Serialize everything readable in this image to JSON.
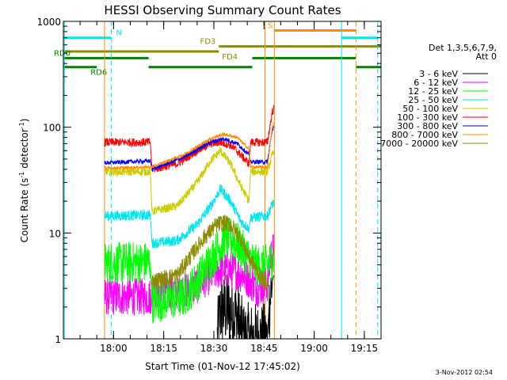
{
  "chart_data": {
    "type": "line",
    "title": "HESSI Observing Summary Count Rates",
    "xlabel": "Start Time (01-Nov-12 17:45:02)",
    "ylabel_main": "Count Rate (s",
    "ylabel_sup1": "-1",
    "ylabel_mid": " detector",
    "ylabel_sup2": "-1",
    "ylabel_end": ")",
    "yscale": "log",
    "ylim": [
      1,
      1000
    ],
    "y_ticks": [
      {
        "v": 1,
        "label": "1"
      },
      {
        "v": 10,
        "label": "10"
      },
      {
        "v": 100,
        "label": "100"
      },
      {
        "v": 1000,
        "label": "1000"
      }
    ],
    "xlim": [
      0,
      95
    ],
    "x_ticks": [
      {
        "t": 15,
        "label": "18:00"
      },
      {
        "t": 30,
        "label": "18:15"
      },
      {
        "t": 45,
        "label": "18:30"
      },
      {
        "t": 60,
        "label": "18:45"
      },
      {
        "t": 75,
        "label": "19:00"
      },
      {
        "t": 90,
        "label": "19:15"
      }
    ],
    "legend_header": [
      "Det 1,3,5,6,7,9,",
      "Att 0"
    ],
    "legend_position": "right",
    "gaps": [
      [
        0,
        12.3
      ],
      [
        63.1,
        95
      ]
    ],
    "series": [
      {
        "name": "3 - 6 keV",
        "color": "#000000",
        "noise": 0.35,
        "points": [
          [
            46,
            1.0
          ],
          [
            47,
            1.8
          ],
          [
            49,
            1.9
          ],
          [
            52,
            1.6
          ],
          [
            54,
            1.0
          ],
          [
            61,
            1.0
          ],
          [
            61.5,
            2.0
          ],
          [
            62.5,
            3.5
          ],
          [
            62.9,
            4.0
          ]
        ]
      },
      {
        "name": "6 - 12 keV",
        "color": "#ff00ff",
        "noise": 0.18,
        "points": [
          [
            12.3,
            2.5
          ],
          [
            26,
            2.5
          ],
          [
            26.5,
            2.8
          ],
          [
            38,
            2.9
          ],
          [
            44,
            4.0
          ],
          [
            47,
            4.5
          ],
          [
            50,
            4.5
          ],
          [
            54,
            4.0
          ],
          [
            58,
            3.0
          ],
          [
            61,
            3.3
          ],
          [
            62,
            6.0
          ],
          [
            62.9,
            7.0
          ]
        ]
      },
      {
        "name": "12 - 25 keV",
        "color": "#00ff00",
        "noise": 0.2,
        "points": [
          [
            12.3,
            5.2
          ],
          [
            26,
            5.3
          ],
          [
            26.5,
            2.2
          ],
          [
            36,
            2.5
          ],
          [
            40,
            3.5
          ],
          [
            44,
            5.5
          ],
          [
            48,
            8.5
          ],
          [
            50,
            9.0
          ],
          [
            52,
            8.0
          ],
          [
            55,
            6.0
          ],
          [
            58,
            4.8
          ],
          [
            61,
            5.0
          ],
          [
            62.9,
            6.0
          ]
        ]
      },
      {
        "name": "25 - 50 keV",
        "color": "#00e5ee",
        "noise": 0.05,
        "points": [
          [
            12.3,
            14.5
          ],
          [
            26,
            14.8
          ],
          [
            26.5,
            8.0
          ],
          [
            34,
            8.5
          ],
          [
            40,
            12.0
          ],
          [
            44,
            18.0
          ],
          [
            47,
            26.0
          ],
          [
            50,
            20.0
          ],
          [
            53,
            13.0
          ],
          [
            55.5,
            11.0
          ],
          [
            56,
            14.0
          ],
          [
            61,
            14.5
          ],
          [
            62.5,
            19.0
          ],
          [
            62.9,
            19.0
          ]
        ]
      },
      {
        "name": "50 - 100 keV",
        "color": "#cccc00",
        "noise": 0.04,
        "points": [
          [
            12.3,
            38.0
          ],
          [
            26,
            38.0
          ],
          [
            26.5,
            16.0
          ],
          [
            34,
            18.0
          ],
          [
            40,
            30.0
          ],
          [
            44,
            48.0
          ],
          [
            47,
            60.0
          ],
          [
            50,
            45.0
          ],
          [
            53,
            28.0
          ],
          [
            55.5,
            20.0
          ],
          [
            56,
            38.0
          ],
          [
            61,
            38.0
          ],
          [
            62.5,
            55.0
          ],
          [
            62.9,
            58.0
          ]
        ]
      },
      {
        "name": "100 - 300 keV",
        "color": "#ff0000",
        "noise": 0.04,
        "points": [
          [
            12.3,
            72.0
          ],
          [
            26,
            72.0
          ],
          [
            26.5,
            40.0
          ],
          [
            34,
            45.0
          ],
          [
            40,
            60.0
          ],
          [
            44,
            70.0
          ],
          [
            47,
            72.0
          ],
          [
            50,
            68.0
          ],
          [
            53,
            55.0
          ],
          [
            55.5,
            45.0
          ],
          [
            56,
            72.0
          ],
          [
            61,
            72.0
          ],
          [
            62.5,
            140.0
          ],
          [
            62.9,
            150.0
          ]
        ]
      },
      {
        "name": "300 - 800 keV",
        "color": "#0000ff",
        "noise": 0.02,
        "points": [
          [
            12.3,
            46.0
          ],
          [
            26,
            48.0
          ],
          [
            26.5,
            40.0
          ],
          [
            36,
            52.0
          ],
          [
            44,
            72.0
          ],
          [
            48,
            78.0
          ],
          [
            52,
            70.0
          ],
          [
            55.5,
            55.0
          ],
          [
            56,
            47.0
          ],
          [
            61,
            47.0
          ],
          [
            62.5,
            95.0
          ],
          [
            62.9,
            100.0
          ]
        ]
      },
      {
        "name": "800 - 7000 keV",
        "color": "#ff8c00",
        "noise": 0.015,
        "points": [
          [
            12.3,
            41.0
          ],
          [
            26,
            42.0
          ],
          [
            26.5,
            42.0
          ],
          [
            36,
            55.0
          ],
          [
            44,
            78.0
          ],
          [
            48,
            86.0
          ],
          [
            52,
            80.0
          ],
          [
            55.5,
            62.0
          ],
          [
            56,
            42.0
          ],
          [
            61,
            42.0
          ],
          [
            62.5,
            100.0
          ],
          [
            62.9,
            110.0
          ]
        ]
      },
      {
        "name": "7000 - 20000 keV",
        "color": "#8b8b00",
        "noise": 0.08,
        "points": [
          [
            26.5,
            3.5
          ],
          [
            34,
            4.0
          ],
          [
            38,
            6.0
          ],
          [
            42,
            9.0
          ],
          [
            46,
            12.0
          ],
          [
            48,
            12.5
          ],
          [
            50,
            12.0
          ],
          [
            53,
            9.0
          ],
          [
            56,
            5.5
          ],
          [
            60,
            3.5
          ],
          [
            61,
            3.5
          ]
        ]
      }
    ],
    "vlines": [
      {
        "t": 0.3,
        "color": "#00e5ee",
        "style": "solid"
      },
      {
        "t": 12.3,
        "color": "#ff8c00",
        "style": "solid"
      },
      {
        "t": 14.3,
        "color": "#00e5ee",
        "style": "dashed"
      },
      {
        "t": 60.3,
        "color": "#ff8c00",
        "style": "solid"
      },
      {
        "t": 63.1,
        "color": "#ff8c00",
        "style": "solid"
      },
      {
        "t": 83.2,
        "color": "#00e5ee",
        "style": "solid"
      },
      {
        "t": 87.5,
        "color": "#ff8c00",
        "style": "dashed"
      },
      {
        "t": 94.0,
        "color": "#00e5ee",
        "style": "dashed"
      }
    ],
    "flag_bars": [
      {
        "label": "N",
        "color": "#00e5ee",
        "t0": 0,
        "t1": 14.3,
        "level": 700
      },
      {
        "label": "",
        "color": "#00e5ee",
        "t0": 83.2,
        "t1": 94,
        "level": 700
      },
      {
        "label": "S",
        "color": "#ff8c00",
        "t0": 63.1,
        "t1": 87.5,
        "level": 820
      },
      {
        "label": "FD3",
        "color": "#8b8b00",
        "t0": 46.5,
        "t1": 95,
        "level": 580
      },
      {
        "label": "FD4",
        "color": "#8b8b00",
        "t0": 0,
        "t1": 46.5,
        "level": 520
      },
      {
        "label": "RD0",
        "color": "#008000",
        "t0": 0,
        "t1": 25.5,
        "level": 450
      },
      {
        "label": "",
        "color": "#008000",
        "t0": 56.5,
        "t1": 87.5,
        "level": 450
      },
      {
        "label": "RD6",
        "color": "#008000",
        "t0": 0,
        "t1": 10,
        "level": 370
      },
      {
        "label": "",
        "color": "#008000",
        "t0": 25.5,
        "t1": 56.5,
        "level": 370
      },
      {
        "label": "",
        "color": "#008000",
        "t0": 87.5,
        "t1": 95,
        "level": 370
      }
    ]
  },
  "footer": {
    "timestamp": "3-Nov-2012 02:54"
  }
}
